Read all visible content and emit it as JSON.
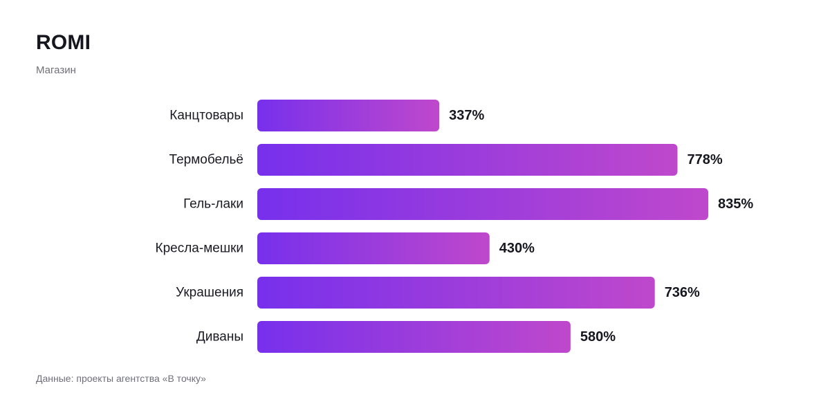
{
  "header": {
    "title": "ROMI",
    "subtitle": "Магазин"
  },
  "footer": {
    "source": "Данные: проекты агентства «В точку»"
  },
  "colors": {
    "bar_gradient_start": "#7730ec",
    "bar_gradient_end": "#bf48cc"
  },
  "chart_data": {
    "type": "bar",
    "orientation": "horizontal",
    "title": "ROMI",
    "subtitle": "Магазин",
    "categories": [
      "Канцтовары",
      "Термобельё",
      "Гель-лаки",
      "Кресла-мешки",
      "Украшения",
      "Диваны"
    ],
    "values": [
      337,
      778,
      835,
      430,
      736,
      580
    ],
    "value_labels": [
      "337%",
      "778%",
      "835%",
      "430%",
      "736%",
      "580%"
    ],
    "unit": "%",
    "xlim": [
      0,
      835
    ],
    "grid": false,
    "legend": "none"
  }
}
